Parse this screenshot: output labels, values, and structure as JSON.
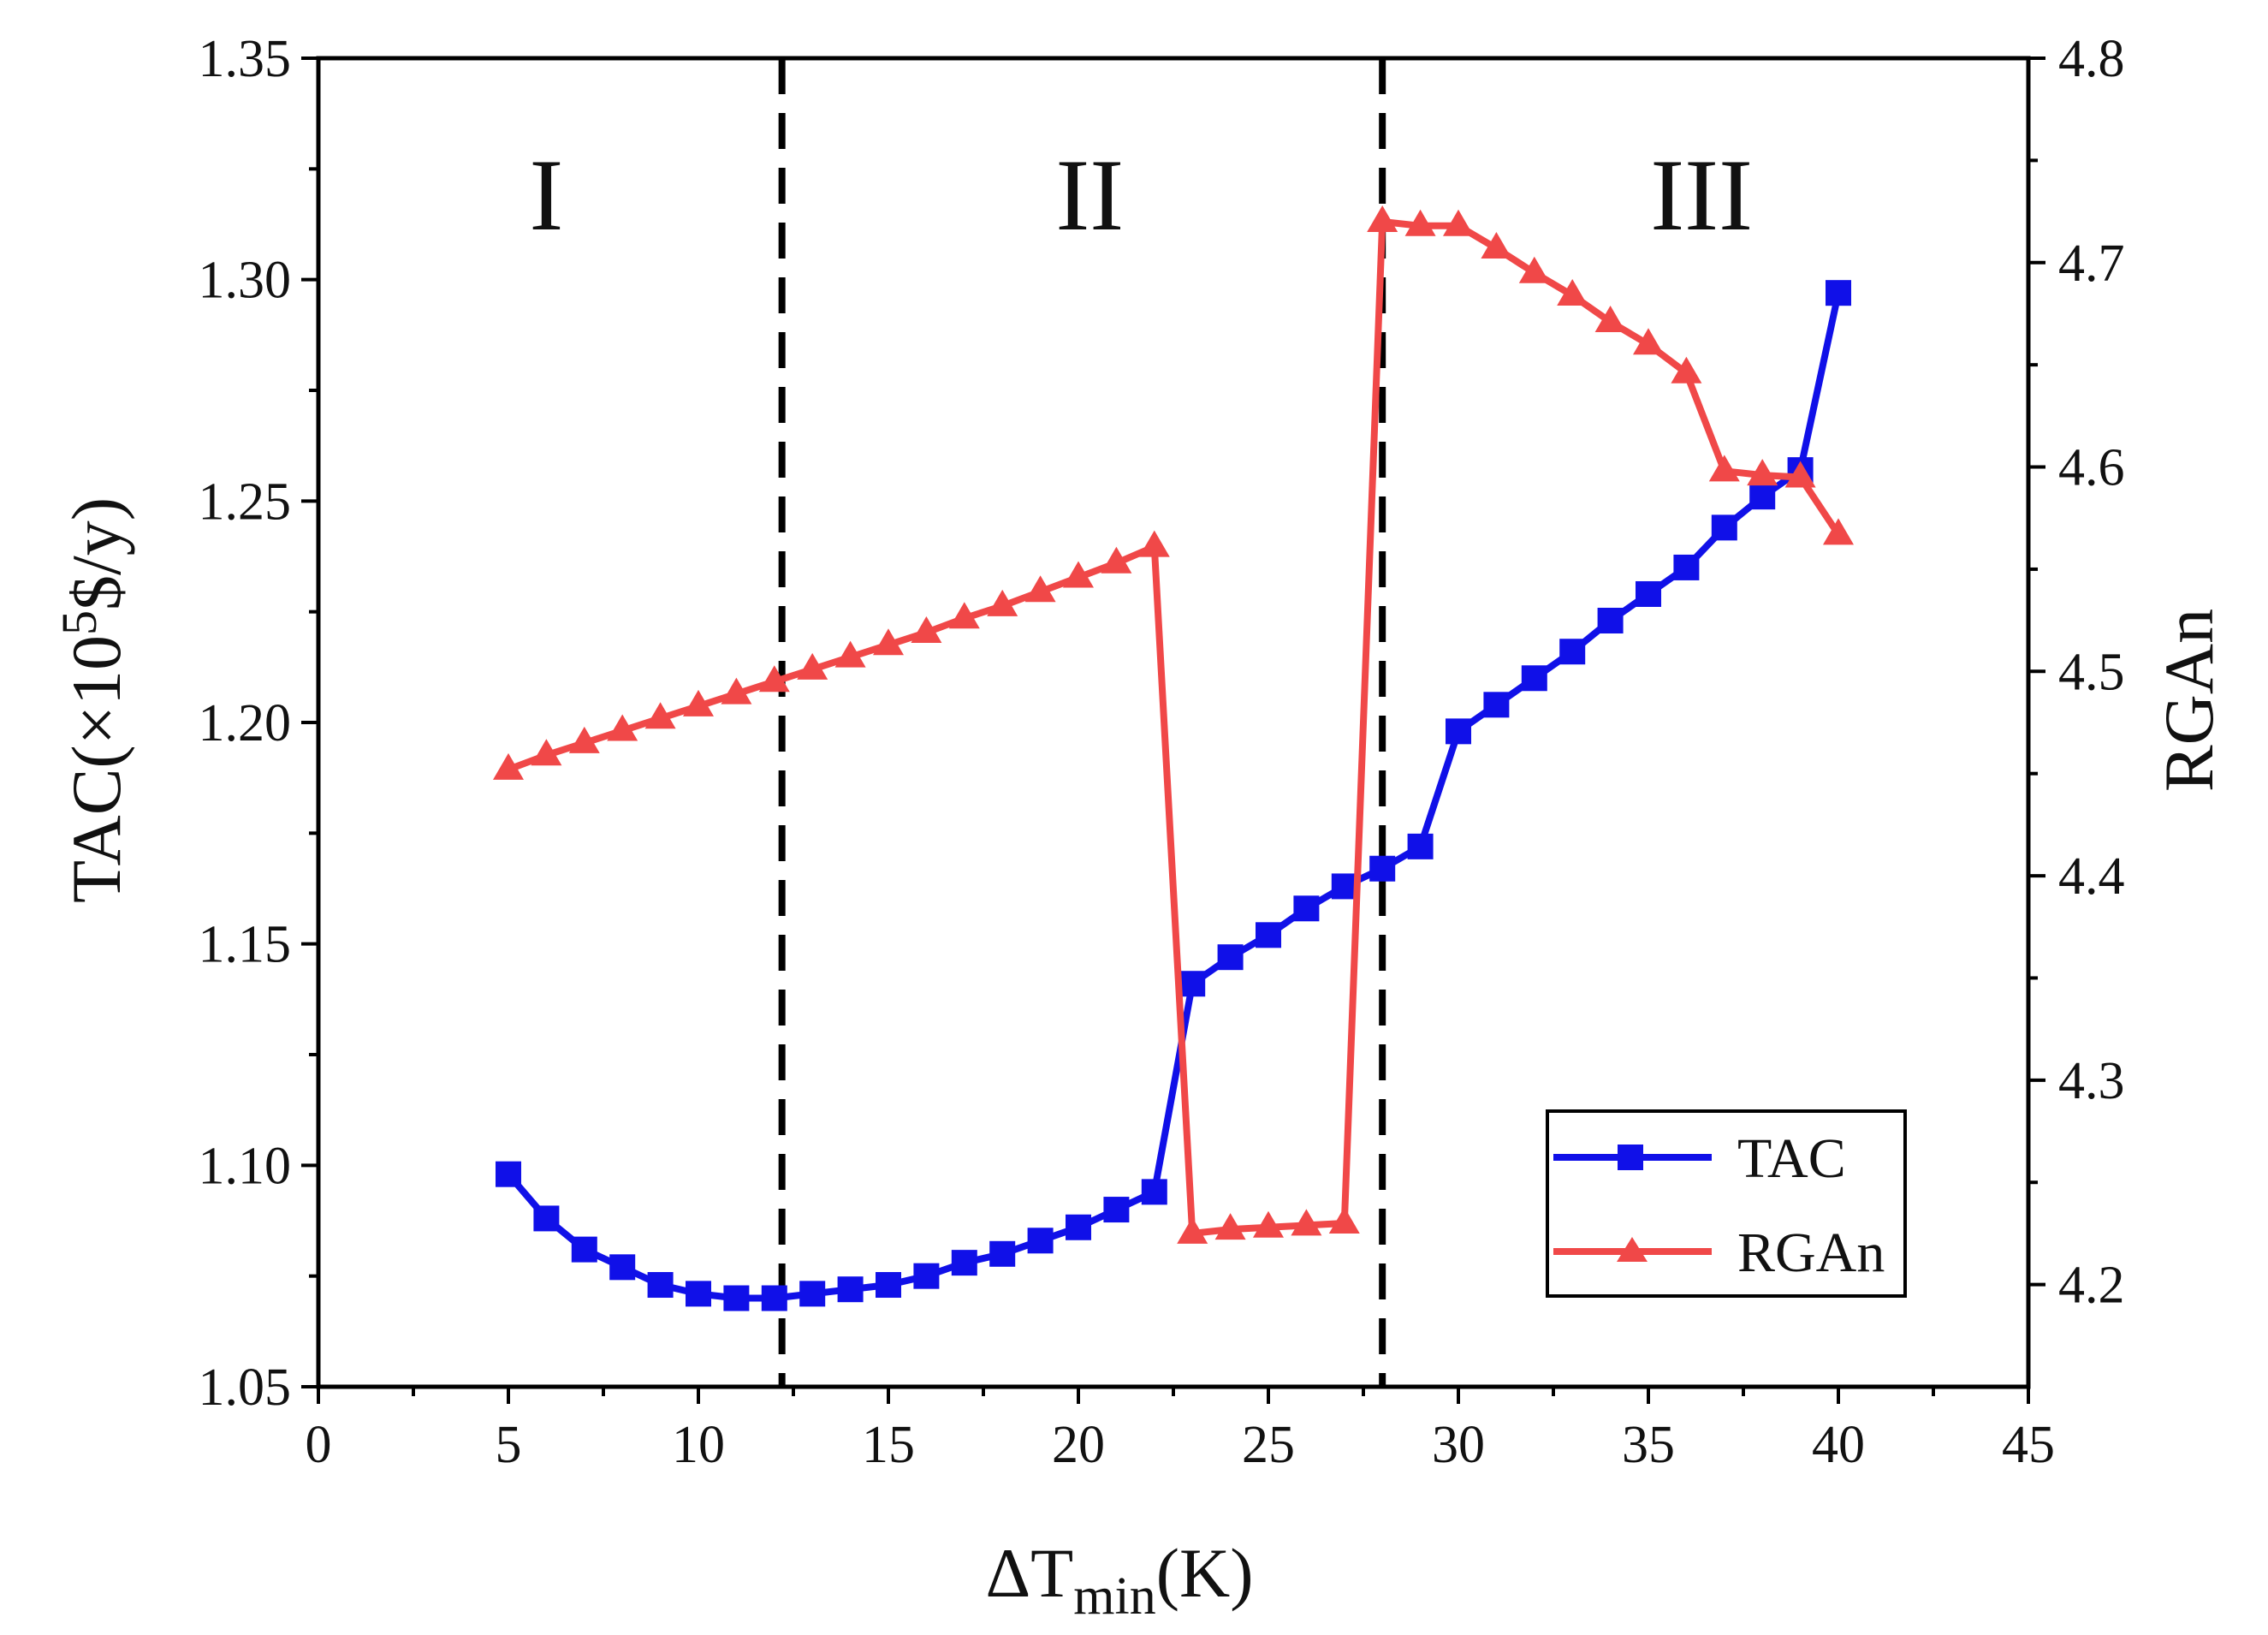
{
  "chart_data": {
    "type": "line",
    "title": "",
    "xlabel": {
      "prefix": "ΔT",
      "sub": "min",
      "suffix": "(K)"
    },
    "ylabel_left": {
      "text": "TAC(×10",
      "sup": "5",
      "suffix": "$/y)"
    },
    "ylabel_right": "RGAn",
    "xlim": [
      0,
      45
    ],
    "ylim_left": [
      1.05,
      1.35
    ],
    "ylim_right": [
      4.15,
      4.8
    ],
    "x_ticks": [
      "0",
      "5",
      "10",
      "15",
      "20",
      "25",
      "30",
      "35",
      "40",
      "45"
    ],
    "y_left_ticks": [
      "1.05",
      "1.10",
      "1.15",
      "1.20",
      "1.25",
      "1.30",
      "1.35"
    ],
    "y_right_ticks": [
      "4.2",
      "4.3",
      "4.4",
      "4.5",
      "4.6",
      "4.7",
      "4.8"
    ],
    "regions": [
      {
        "label": "I",
        "x": 6
      },
      {
        "label": "II",
        "x": 20.3
      },
      {
        "label": "III",
        "x": 36.4
      }
    ],
    "region_dividers": [
      12.2,
      28
    ],
    "legend_position": "bottom-right",
    "series": [
      {
        "name": "TAC",
        "axis": "left",
        "color": "#1010e8",
        "marker": "square",
        "x": [
          5,
          6,
          7,
          8,
          9,
          10,
          11,
          12,
          13,
          14,
          15,
          16,
          17,
          18,
          19,
          20,
          21,
          22,
          23,
          24,
          25,
          26,
          27,
          28,
          29,
          30,
          31,
          32,
          33,
          34,
          35,
          36,
          37,
          38,
          39,
          40
        ],
        "values": [
          1.098,
          1.088,
          1.081,
          1.077,
          1.073,
          1.071,
          1.07,
          1.07,
          1.071,
          1.072,
          1.073,
          1.075,
          1.078,
          1.08,
          1.083,
          1.086,
          1.09,
          1.094,
          1.141,
          1.147,
          1.152,
          1.158,
          1.163,
          1.167,
          1.172,
          1.198,
          1.204,
          1.21,
          1.216,
          1.223,
          1.229,
          1.235,
          1.244,
          1.251,
          1.257,
          1.297
        ]
      },
      {
        "name": "RGAn",
        "axis": "right",
        "color": "#f04848",
        "marker": "triangle",
        "x": [
          5,
          6,
          7,
          8,
          9,
          10,
          11,
          12,
          13,
          14,
          15,
          16,
          17,
          18,
          19,
          20,
          21,
          22,
          23,
          24,
          25,
          26,
          27,
          28,
          29,
          30,
          31,
          32,
          33,
          34,
          35,
          36,
          37,
          38,
          39,
          40
        ],
        "values": [
          4.452,
          4.459,
          4.465,
          4.471,
          4.477,
          4.483,
          4.489,
          4.495,
          4.501,
          4.507,
          4.513,
          4.519,
          4.526,
          4.532,
          4.539,
          4.546,
          4.553,
          4.561,
          4.225,
          4.227,
          4.228,
          4.229,
          4.23,
          4.72,
          4.718,
          4.718,
          4.707,
          4.695,
          4.684,
          4.671,
          4.66,
          4.646,
          4.598,
          4.596,
          4.595,
          4.567
        ]
      }
    ]
  }
}
